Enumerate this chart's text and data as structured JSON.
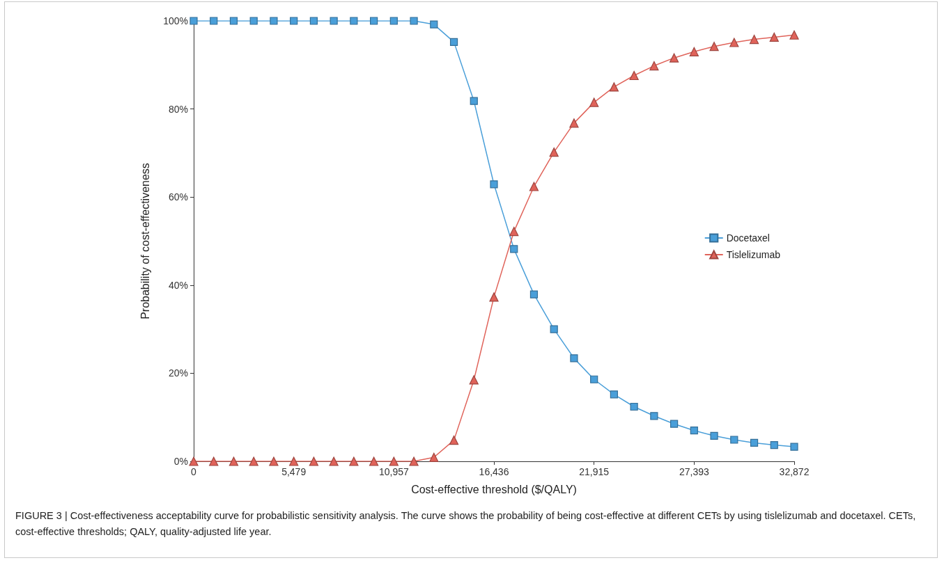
{
  "chart_data": {
    "type": "line",
    "xlabel": "Cost-effective threshold ($/QALY)",
    "ylabel": "Probability of cost-effectiveness",
    "x": [
      0,
      1096,
      2191,
      3287,
      4383,
      5479,
      6574,
      7670,
      8766,
      9862,
      10957,
      12053,
      13149,
      14245,
      15340,
      16436,
      17532,
      18627,
      19723,
      20819,
      21915,
      23010,
      24106,
      25202,
      26298,
      27393,
      28489,
      29585,
      30681,
      31776,
      32872
    ],
    "series": [
      {
        "name": "Docetaxel",
        "color": "#4a9fd9",
        "marker": "square",
        "values": [
          100,
          100,
          100,
          100,
          100,
          100,
          100,
          100,
          100,
          100,
          100,
          100,
          99.2,
          95.2,
          81.8,
          62.9,
          48.2,
          37.9,
          30.0,
          23.4,
          18.6,
          15.2,
          12.4,
          10.3,
          8.5,
          7.0,
          5.8,
          4.9,
          4.2,
          3.7,
          3.3
        ]
      },
      {
        "name": "Tislelizumab",
        "color": "#e0635a",
        "marker": "triangle",
        "values": [
          0,
          0,
          0,
          0,
          0,
          0,
          0,
          0,
          0,
          0,
          0,
          0,
          0.9,
          4.8,
          18.5,
          37.3,
          52.2,
          62.4,
          70.2,
          76.8,
          81.5,
          85.0,
          87.6,
          89.8,
          91.6,
          93.0,
          94.2,
          95.1,
          95.8,
          96.3,
          96.8
        ]
      }
    ],
    "xlim": [
      0,
      32872
    ],
    "xticks": [
      0,
      {
        "value": 5479,
        "label": "5,479"
      },
      {
        "value": 10957,
        "label": "10,957"
      },
      {
        "value": 16436,
        "label": "16,436"
      },
      {
        "value": 21915,
        "label": "21,915"
      },
      {
        "value": 27393,
        "label": "27,393"
      },
      {
        "value": 32872,
        "label": "32,872"
      }
    ],
    "ylim": [
      0,
      100
    ],
    "yticks": [
      {
        "value": 0,
        "label": "0%"
      },
      {
        "value": 20,
        "label": "20%"
      },
      {
        "value": 40,
        "label": "40%"
      },
      {
        "value": 60,
        "label": "60%"
      },
      {
        "value": 80,
        "label": "80%"
      },
      {
        "value": 100,
        "label": "100%"
      }
    ],
    "grid": false,
    "legend": "right",
    "line_style": "solid",
    "annotations": [
      "FIGURE 3 | Cost-effectiveness acceptability curve for probabilistic sensitivity analysis. The curve shows the probability of being cost-effective at different CETs by using tislelizumab and docetaxel. CETs, cost-effective thresholds; QALY, quality-adjusted life year."
    ]
  }
}
